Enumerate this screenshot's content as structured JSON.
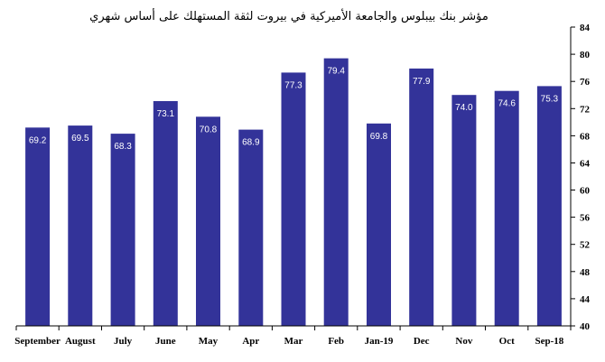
{
  "chart_data": {
    "type": "bar",
    "title": "مؤشر بنك بيبلوس والجامعة الأميركية في بيروت لثقة المستهلك على أساس شهري",
    "categories": [
      "September",
      "August",
      "July",
      "June",
      "May",
      "Apr",
      "Mar",
      "Feb",
      "Jan-19",
      "Dec",
      "Nov",
      "Oct",
      "Sep-18"
    ],
    "values": [
      69.2,
      69.5,
      68.3,
      73.1,
      70.8,
      68.9,
      77.3,
      79.4,
      69.8,
      77.9,
      74.0,
      74.6,
      75.3
    ],
    "value_labels": [
      "69.2",
      "69.5",
      "68.3",
      "73.1",
      "70.8",
      "68.9",
      "77.3",
      "79.4",
      "69.8",
      "77.9",
      "74.0",
      "74.6",
      "75.3"
    ],
    "ylim": [
      40,
      84
    ],
    "y_ticks": [
      "40",
      "44",
      "48",
      "52",
      "56",
      "60",
      "64",
      "68",
      "72",
      "76",
      "80",
      "84"
    ],
    "y_axis_side": "right",
    "bar_color": "#333399",
    "grid": false,
    "legend": "none"
  }
}
